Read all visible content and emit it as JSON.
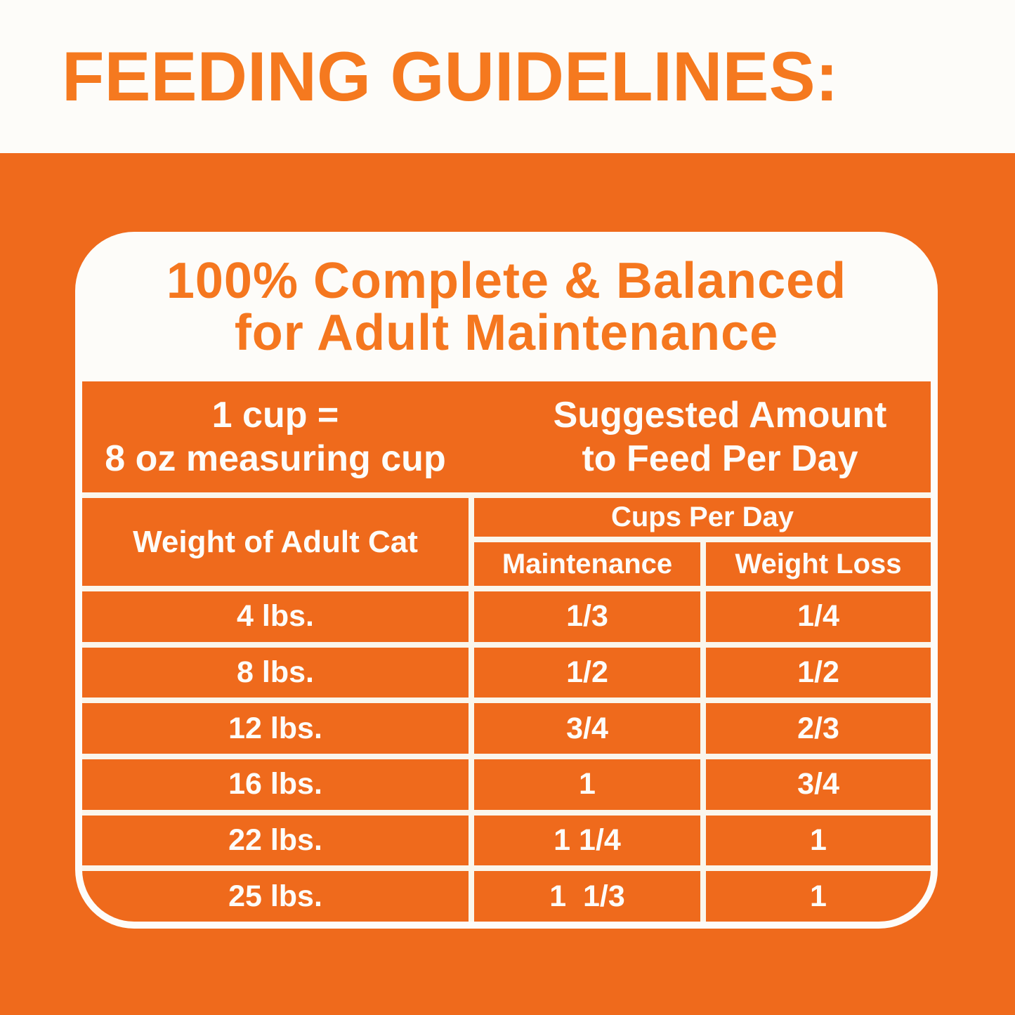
{
  "page_title": "FEEDING GUIDELINES:",
  "card_heading": {
    "line1": "100% Complete & Balanced",
    "line2": "for Adult Maintenance"
  },
  "info": {
    "cup_line1": "1 cup =",
    "cup_line2": "8 oz measuring cup",
    "suggested_line1": "Suggested Amount",
    "suggested_line2": "to Feed Per Day"
  },
  "chart_data": {
    "type": "table",
    "title": "Feeding Guidelines - 100% Complete & Balanced for Adult Maintenance",
    "note_cup": "1 cup = 8 oz measuring cup",
    "note_amount": "Suggested Amount to Feed Per Day",
    "weight_header": "Weight of Adult Cat",
    "cups_header": "Cups Per Day",
    "col_maintenance": "Maintenance",
    "col_weight_loss": "Weight Loss",
    "rows": [
      {
        "weight": "4 lbs.",
        "maintenance": "1/3",
        "weight_loss": "1/4"
      },
      {
        "weight": "8 lbs.",
        "maintenance": "1/2",
        "weight_loss": "1/2"
      },
      {
        "weight": "12 lbs.",
        "maintenance": "3/4",
        "weight_loss": "2/3"
      },
      {
        "weight": "16 lbs.",
        "maintenance": "1",
        "weight_loss": "3/4"
      },
      {
        "weight": "22 lbs.",
        "maintenance": "1 1/4",
        "weight_loss": "1"
      },
      {
        "weight": "25 lbs.",
        "maintenance": "1  1/3",
        "weight_loss": "1"
      }
    ]
  },
  "colors": {
    "orange_background": "#EF6A1C",
    "orange_text": "#F5771F",
    "white": "#FDFCF9"
  }
}
